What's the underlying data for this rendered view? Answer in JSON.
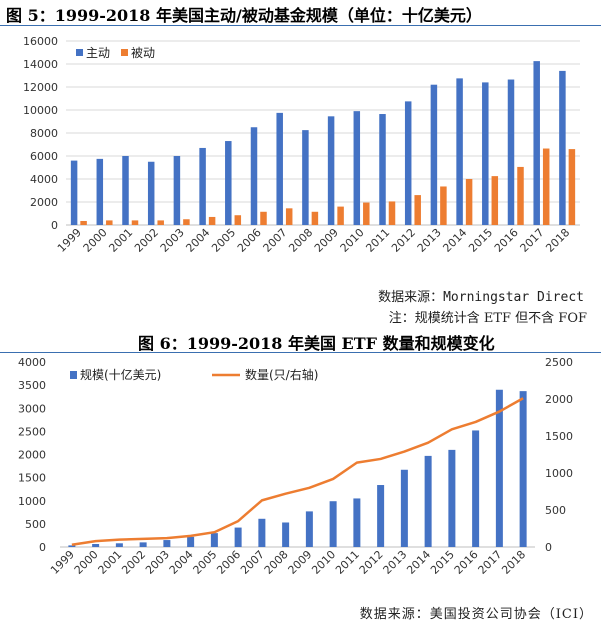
{
  "chart1_title": "图 5：1999-2018 年美国主动/被动基金规模（单位：十亿美元）",
  "chart2_title": "图 6：1999-2018 年美国 ETF 数量和规模变化",
  "source1": "数据来源：Morningstar Direct",
  "note1": "注：规模统计含 ETF 但不含 FOF",
  "source2": "数据来源：美国投资公司协会（ICI）",
  "colors": {
    "blue": "#4472c4",
    "orange": "#ed7d31",
    "rule": "#3a6fb0"
  },
  "chart_data": [
    {
      "type": "bar",
      "title": "图 5：1999-2018 年美国主动/被动基金规模（单位：十亿美元）",
      "categories": [
        "1999",
        "2000",
        "2001",
        "2002",
        "2003",
        "2004",
        "2005",
        "2006",
        "2007",
        "2008",
        "2009",
        "2010",
        "2011",
        "2012",
        "2013",
        "2014",
        "2015",
        "2016",
        "2017",
        "2018"
      ],
      "series": [
        {
          "name": "主动",
          "values": [
            5600,
            5750,
            6000,
            5500,
            6000,
            6700,
            7300,
            8500,
            9750,
            8250,
            9450,
            9900,
            9650,
            10750,
            12200,
            12750,
            12400,
            12650,
            14250,
            13400
          ]
        },
        {
          "name": "被动",
          "values": [
            350,
            400,
            400,
            400,
            500,
            700,
            850,
            1150,
            1450,
            1150,
            1600,
            1950,
            2050,
            2600,
            3350,
            4000,
            4250,
            5050,
            6650,
            6600
          ]
        }
      ],
      "ylim": [
        0,
        16000
      ],
      "yticks": [
        0,
        2000,
        4000,
        6000,
        8000,
        10000,
        12000,
        14000,
        16000
      ],
      "legend": "top-left",
      "xlabel": "",
      "ylabel": ""
    },
    {
      "type": "bar+line",
      "title": "图 6：1999-2018 年美国 ETF 数量和规模变化",
      "categories": [
        "1999",
        "2000",
        "2001",
        "2002",
        "2003",
        "2004",
        "2005",
        "2006",
        "2007",
        "2008",
        "2009",
        "2010",
        "2011",
        "2012",
        "2013",
        "2014",
        "2015",
        "2016",
        "2017",
        "2018"
      ],
      "series": [
        {
          "name": "规模(十亿美元)",
          "kind": "bar",
          "axis": "left",
          "values": [
            35,
            65,
            80,
            100,
            150,
            220,
            300,
            420,
            610,
            530,
            770,
            990,
            1050,
            1340,
            1670,
            1970,
            2100,
            2520,
            3400,
            3370
          ]
        },
        {
          "name": "数量(只/右轴)",
          "kind": "line",
          "axis": "right",
          "values": [
            30,
            80,
            100,
            110,
            120,
            150,
            200,
            350,
            630,
            720,
            800,
            920,
            1140,
            1190,
            1290,
            1410,
            1590,
            1690,
            1830,
            2010
          ]
        }
      ],
      "ylim_left": [
        0,
        4000
      ],
      "yticks_left": [
        0,
        500,
        1000,
        1500,
        2000,
        2500,
        3000,
        3500,
        4000
      ],
      "ylim_right": [
        0,
        2500
      ],
      "yticks_right": [
        0,
        500,
        1000,
        1500,
        2000,
        2500
      ],
      "legend": "top-left",
      "xlabel": "",
      "ylabel": ""
    }
  ]
}
